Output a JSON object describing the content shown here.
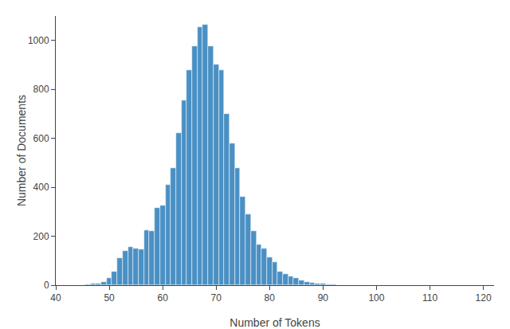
{
  "chart_data": {
    "type": "bar",
    "xlabel": "Number of Tokens",
    "ylabel": "Number of Documents",
    "x": [
      46,
      47,
      48,
      49,
      50,
      51,
      52,
      53,
      54,
      55,
      56,
      57,
      58,
      59,
      60,
      61,
      62,
      63,
      64,
      65,
      66,
      67,
      68,
      69,
      70,
      71,
      72,
      73,
      74,
      75,
      76,
      77,
      78,
      79,
      80,
      81,
      82,
      83,
      84,
      85,
      86,
      87,
      88,
      89,
      90,
      91,
      92,
      93,
      94,
      95
    ],
    "values": [
      2,
      5,
      8,
      12,
      30,
      55,
      110,
      140,
      155,
      150,
      145,
      225,
      220,
      315,
      325,
      410,
      480,
      620,
      755,
      880,
      975,
      1055,
      1065,
      975,
      900,
      880,
      700,
      580,
      480,
      360,
      290,
      220,
      165,
      150,
      115,
      95,
      55,
      45,
      35,
      30,
      18,
      12,
      10,
      8,
      5,
      3,
      2,
      1,
      1,
      1
    ],
    "color": "#4a90c4",
    "xlim": [
      40,
      122
    ],
    "ylim": [
      0,
      1100
    ],
    "xticks": [
      40,
      50,
      60,
      70,
      80,
      90,
      100,
      110,
      120
    ],
    "yticks": [
      0,
      200,
      400,
      600,
      800,
      1000
    ],
    "grid": false
  }
}
